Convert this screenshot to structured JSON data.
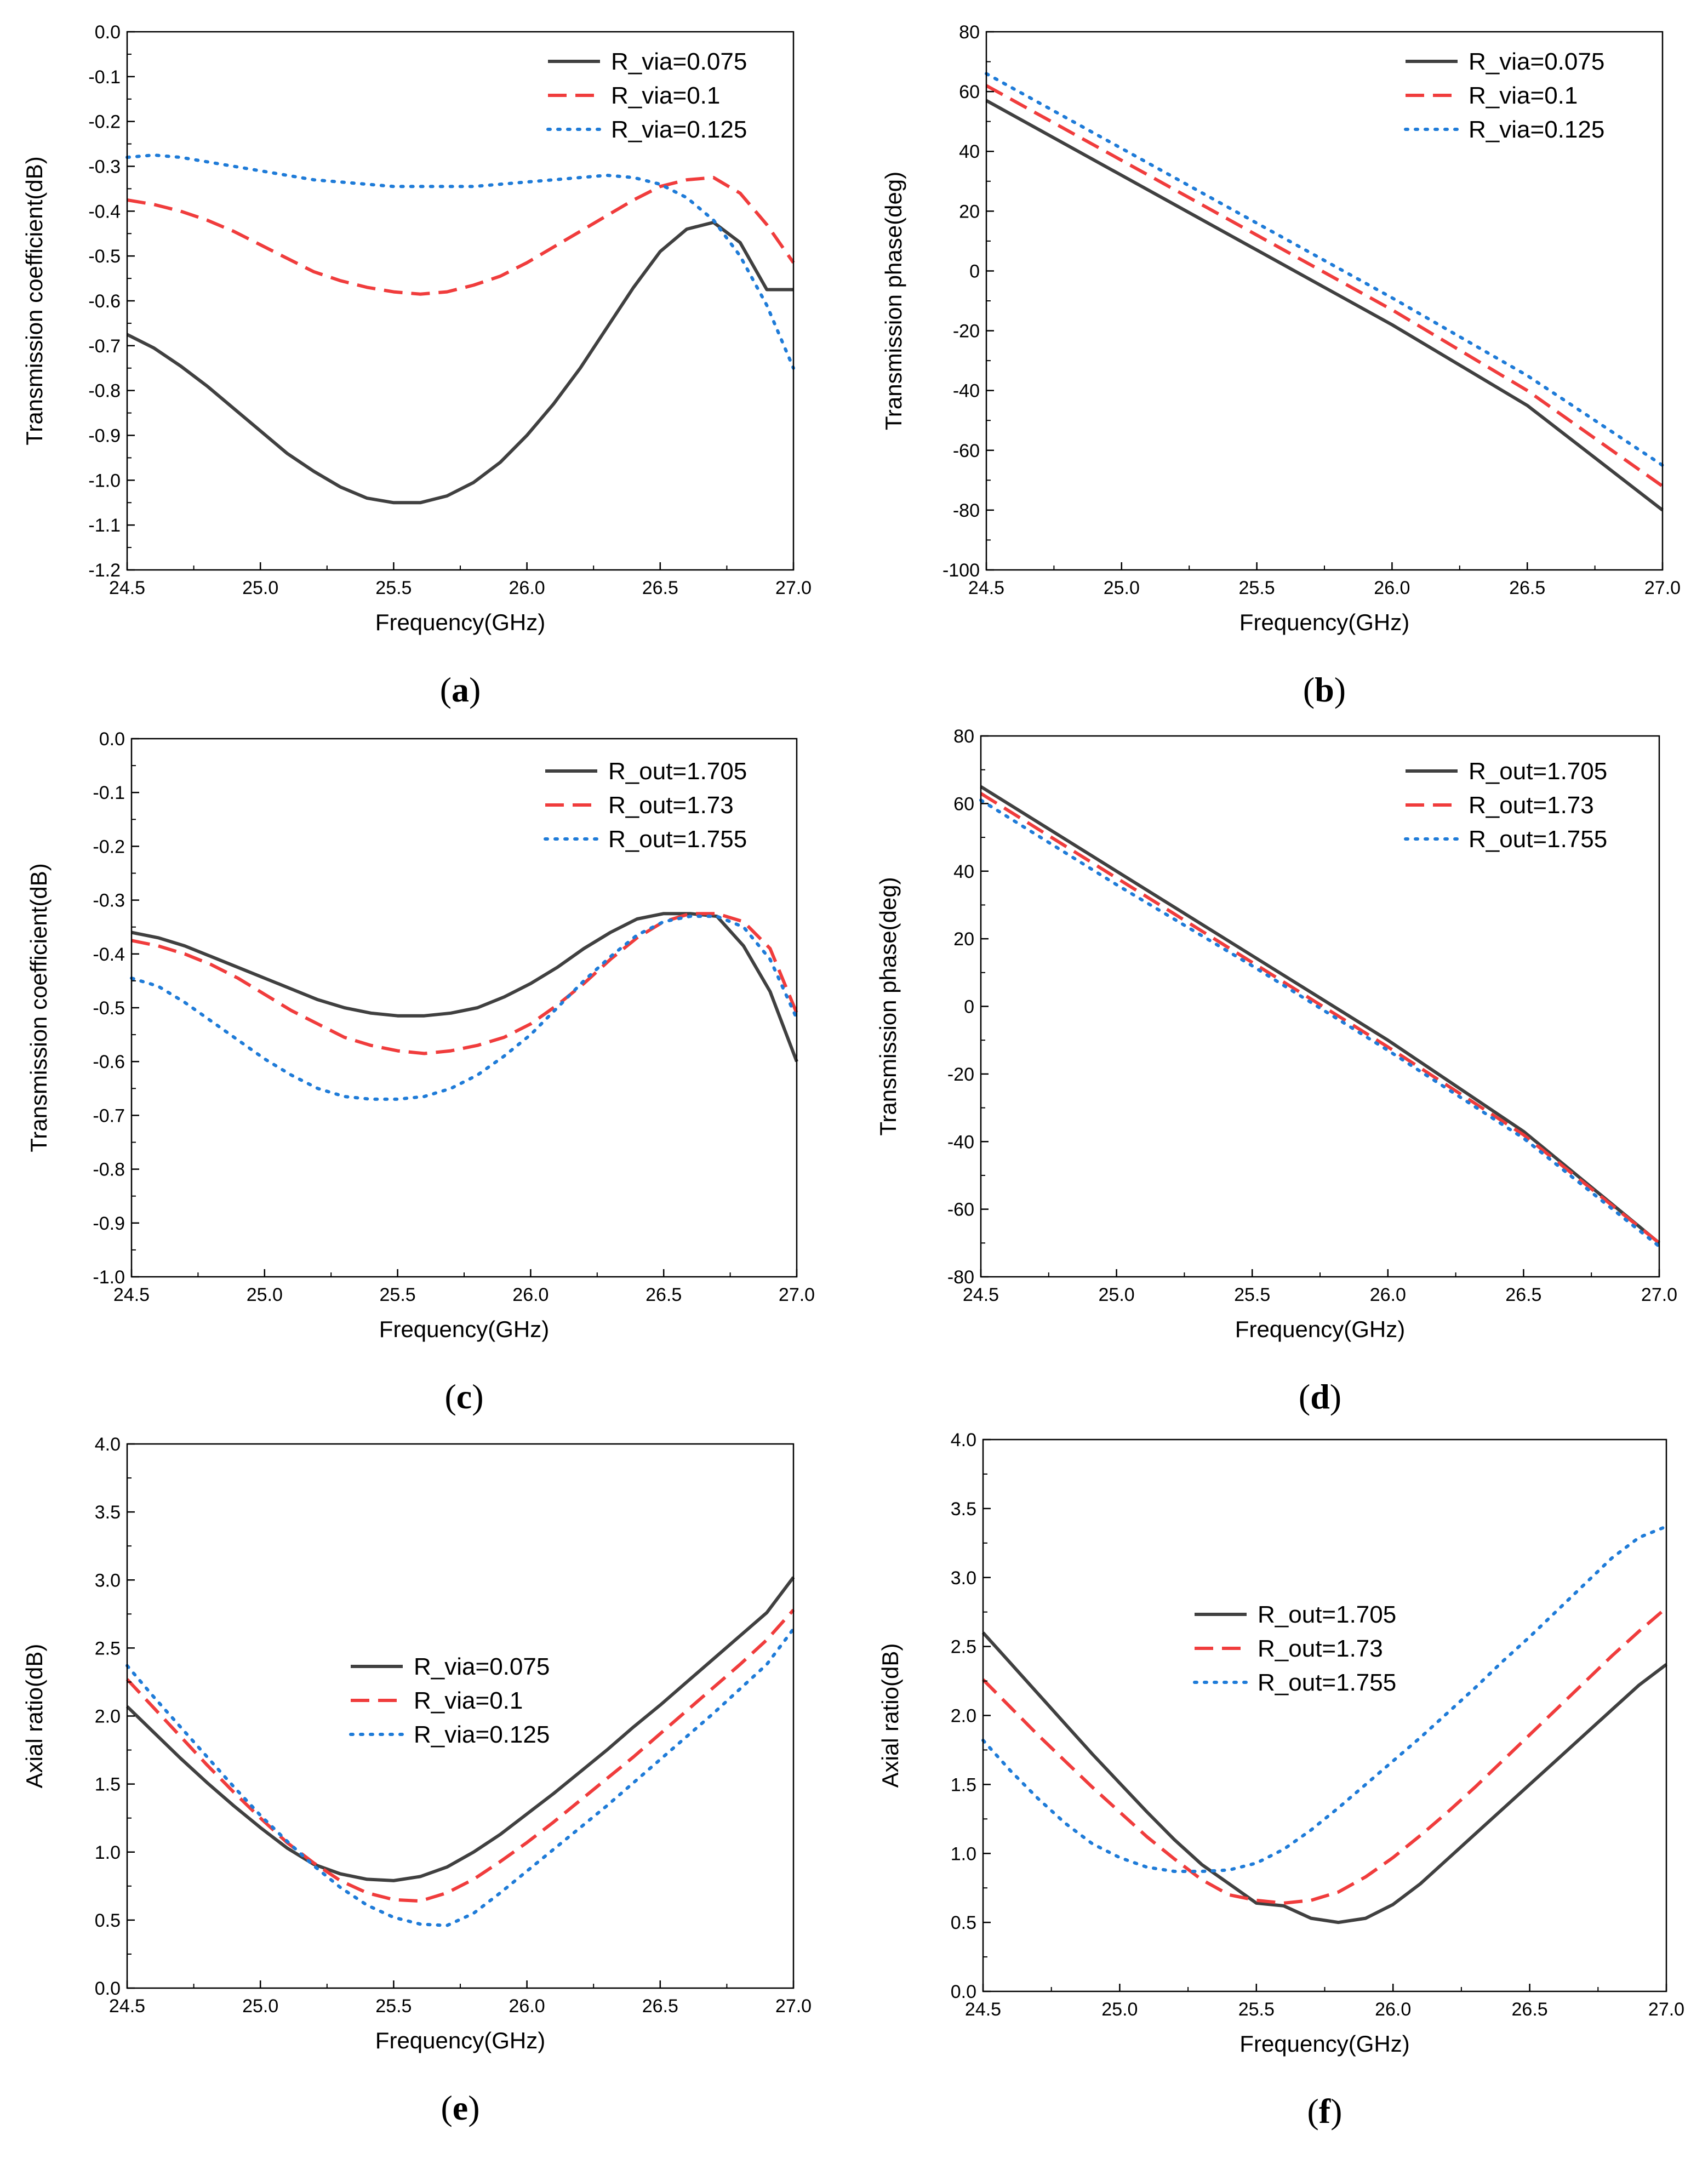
{
  "chart_data": [
    {
      "id": "a",
      "caption": "a",
      "type": "line",
      "xlabel": "Frequency(GHz)",
      "ylabel": "Transmission coefficient(dB)",
      "xlim": [
        24.5,
        27.0
      ],
      "ylim": [
        -1.2,
        0.0
      ],
      "xticks": [
        "24.5",
        "25.0",
        "25.5",
        "26.0",
        "26.5",
        "27.0"
      ],
      "yticks": [
        "0.0",
        "-0.1",
        "-0.2",
        "-0.3",
        "-0.4",
        "-0.5",
        "-0.6",
        "-0.7",
        "-0.8",
        "-0.9",
        "-1.0",
        "-1.1",
        "-1.2"
      ],
      "legend_position": "top-right",
      "series": [
        {
          "name": "R_via=0.075",
          "style": "solid",
          "color": "#404040",
          "x": [
            24.5,
            24.6,
            24.7,
            24.8,
            24.9,
            25.0,
            25.1,
            25.2,
            25.3,
            25.4,
            25.5,
            25.6,
            25.7,
            25.8,
            25.9,
            26.0,
            26.1,
            26.2,
            26.3,
            26.4,
            26.5,
            26.6,
            26.7,
            26.8,
            26.9,
            27.0
          ],
          "values": [
            -0.675,
            -0.705,
            -0.745,
            -0.79,
            -0.84,
            -0.89,
            -0.94,
            -0.98,
            -1.015,
            -1.04,
            -1.05,
            -1.05,
            -1.035,
            -1.005,
            -0.96,
            -0.9,
            -0.83,
            -0.75,
            -0.66,
            -0.57,
            -0.49,
            -0.44,
            -0.425,
            -0.47,
            -0.575,
            -0.575
          ]
        },
        {
          "name": "R_via=0.1",
          "style": "dashed",
          "color": "#f03c3c",
          "x": [
            24.5,
            24.6,
            24.7,
            24.8,
            24.9,
            25.0,
            25.1,
            25.2,
            25.3,
            25.4,
            25.5,
            25.6,
            25.7,
            25.8,
            25.9,
            26.0,
            26.1,
            26.2,
            26.3,
            26.4,
            26.5,
            26.6,
            26.7,
            26.8,
            26.9,
            27.0
          ],
          "values": [
            -0.375,
            -0.385,
            -0.4,
            -0.42,
            -0.445,
            -0.475,
            -0.505,
            -0.535,
            -0.555,
            -0.57,
            -0.58,
            -0.585,
            -0.58,
            -0.565,
            -0.545,
            -0.515,
            -0.48,
            -0.445,
            -0.41,
            -0.375,
            -0.345,
            -0.33,
            -0.325,
            -0.36,
            -0.43,
            -0.515
          ]
        },
        {
          "name": "R_via=0.125",
          "style": "dotted",
          "color": "#1e7bd8",
          "x": [
            24.5,
            24.6,
            24.7,
            24.8,
            24.9,
            25.0,
            25.1,
            25.2,
            25.3,
            25.4,
            25.5,
            25.6,
            25.7,
            25.8,
            25.9,
            26.0,
            26.1,
            26.2,
            26.3,
            26.4,
            26.5,
            26.6,
            26.7,
            26.8,
            26.9,
            27.0
          ],
          "values": [
            -0.28,
            -0.275,
            -0.28,
            -0.29,
            -0.3,
            -0.31,
            -0.32,
            -0.33,
            -0.335,
            -0.34,
            -0.345,
            -0.345,
            -0.345,
            -0.345,
            -0.34,
            -0.335,
            -0.33,
            -0.325,
            -0.32,
            -0.325,
            -0.34,
            -0.37,
            -0.42,
            -0.5,
            -0.61,
            -0.75
          ]
        }
      ]
    },
    {
      "id": "b",
      "caption": "b",
      "type": "line",
      "xlabel": "Frequency(GHz)",
      "ylabel": "Transmission phase(deg)",
      "xlim": [
        24.5,
        27.0
      ],
      "ylim": [
        -100,
        80
      ],
      "xticks": [
        "24.5",
        "25.0",
        "25.5",
        "26.0",
        "26.5",
        "27.0"
      ],
      "yticks": [
        "80",
        "60",
        "40",
        "20",
        "0",
        "-20",
        "-40",
        "-60",
        "-80",
        "-100"
      ],
      "legend_position": "top-right",
      "series": [
        {
          "name": "R_via=0.075",
          "style": "solid",
          "color": "#404040",
          "x": [
            24.5,
            25.0,
            25.5,
            26.0,
            26.5,
            27.0
          ],
          "values": [
            57,
            32,
            7,
            -18,
            -45,
            -80
          ]
        },
        {
          "name": "R_via=0.1",
          "style": "dashed",
          "color": "#f03c3c",
          "x": [
            24.5,
            25.0,
            25.5,
            26.0,
            26.5,
            27.0
          ],
          "values": [
            62,
            37,
            12,
            -13,
            -40,
            -72
          ]
        },
        {
          "name": "R_via=0.125",
          "style": "dotted",
          "color": "#1e7bd8",
          "x": [
            24.5,
            25.0,
            25.5,
            26.0,
            26.5,
            27.0
          ],
          "values": [
            66,
            41,
            16,
            -9,
            -35,
            -65
          ]
        }
      ]
    },
    {
      "id": "c",
      "caption": "c",
      "type": "line",
      "xlabel": "Frequency(GHz)",
      "ylabel": "Transmission coefficient(dB)",
      "xlim": [
        24.5,
        27.0
      ],
      "ylim": [
        -1.0,
        0.0
      ],
      "xticks": [
        "24.5",
        "25.0",
        "25.5",
        "26.0",
        "26.5",
        "27.0"
      ],
      "yticks": [
        "0.0",
        "-0.1",
        "-0.2",
        "-0.3",
        "-0.4",
        "-0.5",
        "-0.6",
        "-0.7",
        "-0.8",
        "-0.9",
        "-1.0"
      ],
      "legend_position": "top-right",
      "series": [
        {
          "name": "R_out=1.705",
          "style": "solid",
          "color": "#404040",
          "x": [
            24.5,
            24.6,
            24.7,
            24.8,
            24.9,
            25.0,
            25.1,
            25.2,
            25.3,
            25.4,
            25.5,
            25.6,
            25.7,
            25.8,
            25.9,
            26.0,
            26.1,
            26.2,
            26.3,
            26.4,
            26.5,
            26.6,
            26.7,
            26.8,
            26.9,
            27.0
          ],
          "values": [
            -0.36,
            -0.37,
            -0.385,
            -0.405,
            -0.425,
            -0.445,
            -0.465,
            -0.485,
            -0.5,
            -0.51,
            -0.515,
            -0.515,
            -0.51,
            -0.5,
            -0.48,
            -0.455,
            -0.425,
            -0.39,
            -0.36,
            -0.335,
            -0.325,
            -0.325,
            -0.33,
            -0.385,
            -0.47,
            -0.6
          ]
        },
        {
          "name": "R_out=1.73",
          "style": "dashed",
          "color": "#f03c3c",
          "x": [
            24.5,
            24.6,
            24.7,
            24.8,
            24.9,
            25.0,
            25.1,
            25.2,
            25.3,
            25.4,
            25.5,
            25.6,
            25.7,
            25.8,
            25.9,
            26.0,
            26.1,
            26.2,
            26.3,
            26.4,
            26.5,
            26.6,
            26.7,
            26.8,
            26.9,
            27.0
          ],
          "values": [
            -0.375,
            -0.385,
            -0.4,
            -0.42,
            -0.445,
            -0.475,
            -0.505,
            -0.53,
            -0.555,
            -0.57,
            -0.58,
            -0.585,
            -0.58,
            -0.57,
            -0.555,
            -0.53,
            -0.495,
            -0.455,
            -0.41,
            -0.37,
            -0.34,
            -0.325,
            -0.325,
            -0.34,
            -0.39,
            -0.51
          ]
        },
        {
          "name": "R_out=1.755",
          "style": "dotted",
          "color": "#1e7bd8",
          "x": [
            24.5,
            24.6,
            24.7,
            24.8,
            24.9,
            25.0,
            25.1,
            25.2,
            25.3,
            25.4,
            25.5,
            25.6,
            25.7,
            25.8,
            25.9,
            26.0,
            26.1,
            26.2,
            26.3,
            26.4,
            26.5,
            26.6,
            26.7,
            26.8,
            26.9,
            27.0
          ],
          "values": [
            -0.445,
            -0.46,
            -0.49,
            -0.525,
            -0.56,
            -0.595,
            -0.625,
            -0.65,
            -0.665,
            -0.67,
            -0.67,
            -0.665,
            -0.65,
            -0.625,
            -0.59,
            -0.55,
            -0.5,
            -0.45,
            -0.405,
            -0.365,
            -0.34,
            -0.33,
            -0.33,
            -0.35,
            -0.41,
            -0.52
          ]
        }
      ]
    },
    {
      "id": "d",
      "caption": "d",
      "type": "line",
      "xlabel": "Frequency(GHz)",
      "ylabel": "Transmission phase(deg)",
      "xlim": [
        24.5,
        27.0
      ],
      "ylim": [
        -80,
        80
      ],
      "xticks": [
        "24.5",
        "25.0",
        "25.5",
        "26.0",
        "26.5",
        "27.0"
      ],
      "yticks": [
        "80",
        "60",
        "40",
        "20",
        "0",
        "-20",
        "-40",
        "-60",
        "-80"
      ],
      "legend_position": "top-right",
      "series": [
        {
          "name": "R_out=1.705",
          "style": "solid",
          "color": "#404040",
          "x": [
            24.5,
            25.0,
            25.5,
            26.0,
            26.5,
            27.0
          ],
          "values": [
            65,
            40,
            15,
            -10,
            -37,
            -70
          ]
        },
        {
          "name": "R_out=1.73",
          "style": "dashed",
          "color": "#f03c3c",
          "x": [
            24.5,
            25.0,
            25.5,
            26.0,
            26.5,
            27.0
          ],
          "values": [
            63,
            38,
            13,
            -12,
            -38,
            -70
          ]
        },
        {
          "name": "R_out=1.755",
          "style": "dotted",
          "color": "#1e7bd8",
          "x": [
            24.5,
            25.0,
            25.5,
            26.0,
            26.5,
            27.0
          ],
          "values": [
            61,
            36,
            12,
            -13,
            -39,
            -71
          ]
        }
      ]
    },
    {
      "id": "e",
      "caption": "e",
      "type": "line",
      "xlabel": "Frequency(GHz)",
      "ylabel": "Axial ratio(dB)",
      "xlim": [
        24.5,
        27.0
      ],
      "ylim": [
        0.0,
        4.0
      ],
      "xticks": [
        "24.5",
        "25.0",
        "25.5",
        "26.0",
        "26.5",
        "27.0"
      ],
      "yticks": [
        "4.0",
        "3.5",
        "3.0",
        "2.5",
        "2.0",
        "1.5",
        "1.0",
        "0.5",
        "0.0"
      ],
      "legend_position": "center",
      "series": [
        {
          "name": "R_via=0.075",
          "style": "solid",
          "color": "#404040",
          "x": [
            24.5,
            24.6,
            24.7,
            24.8,
            24.9,
            25.0,
            25.1,
            25.2,
            25.3,
            25.4,
            25.5,
            25.6,
            25.7,
            25.8,
            25.9,
            26.0,
            26.1,
            26.2,
            26.3,
            26.4,
            26.5,
            26.6,
            26.7,
            26.8,
            26.9,
            27.0
          ],
          "values": [
            2.07,
            1.88,
            1.69,
            1.51,
            1.34,
            1.18,
            1.03,
            0.91,
            0.84,
            0.8,
            0.79,
            0.82,
            0.89,
            1.0,
            1.13,
            1.28,
            1.43,
            1.59,
            1.75,
            1.92,
            2.08,
            2.25,
            2.42,
            2.59,
            2.76,
            3.02
          ]
        },
        {
          "name": "R_via=0.1",
          "style": "dashed",
          "color": "#f03c3c",
          "x": [
            24.5,
            24.6,
            24.7,
            24.8,
            24.9,
            25.0,
            25.1,
            25.2,
            25.3,
            25.4,
            25.5,
            25.6,
            25.7,
            25.8,
            25.9,
            26.0,
            26.1,
            26.2,
            26.3,
            26.4,
            26.5,
            26.6,
            26.7,
            26.8,
            26.9,
            27.0
          ],
          "values": [
            2.27,
            2.06,
            1.85,
            1.64,
            1.44,
            1.25,
            1.07,
            0.92,
            0.79,
            0.7,
            0.65,
            0.64,
            0.7,
            0.8,
            0.93,
            1.07,
            1.22,
            1.38,
            1.54,
            1.7,
            1.87,
            2.04,
            2.21,
            2.38,
            2.56,
            2.78
          ]
        },
        {
          "name": "R_via=0.125",
          "style": "dotted",
          "color": "#1e7bd8",
          "x": [
            24.5,
            24.6,
            24.7,
            24.8,
            24.9,
            25.0,
            25.1,
            25.2,
            25.3,
            25.4,
            25.5,
            25.6,
            25.7,
            25.8,
            25.9,
            26.0,
            26.1,
            26.2,
            26.3,
            26.4,
            26.5,
            26.6,
            26.7,
            26.8,
            26.9,
            27.0
          ],
          "values": [
            2.37,
            2.14,
            1.92,
            1.7,
            1.48,
            1.27,
            1.08,
            0.9,
            0.74,
            0.61,
            0.52,
            0.47,
            0.46,
            0.55,
            0.7,
            0.86,
            1.02,
            1.18,
            1.34,
            1.51,
            1.68,
            1.85,
            2.02,
            2.2,
            2.38,
            2.64
          ]
        }
      ]
    },
    {
      "id": "f",
      "caption": "f",
      "type": "line",
      "xlabel": "Frequency(GHz)",
      "ylabel": "Axial ratio(dB)",
      "xlim": [
        24.5,
        27.0
      ],
      "ylim": [
        0.0,
        4.0
      ],
      "xticks": [
        "24.5",
        "25.0",
        "25.5",
        "26.0",
        "26.5",
        "27.0"
      ],
      "yticks": [
        "4.0",
        "3.5",
        "3.0",
        "2.5",
        "2.0",
        "1.5",
        "1.0",
        "0.5",
        "0.0"
      ],
      "legend_position": "center-left",
      "series": [
        {
          "name": "R_out=1.705",
          "style": "solid",
          "color": "#404040",
          "x": [
            24.5,
            24.6,
            24.7,
            24.8,
            24.9,
            25.0,
            25.1,
            25.2,
            25.3,
            25.4,
            25.5,
            25.6,
            25.7,
            25.8,
            25.9,
            26.0,
            26.1,
            26.2,
            26.3,
            26.4,
            26.5,
            26.6,
            26.7,
            26.8,
            26.9,
            27.0
          ],
          "values": [
            2.6,
            2.38,
            2.16,
            1.94,
            1.72,
            1.51,
            1.3,
            1.1,
            0.92,
            0.78,
            0.64,
            0.62,
            0.53,
            0.5,
            0.53,
            0.63,
            0.78,
            0.96,
            1.14,
            1.32,
            1.5,
            1.68,
            1.86,
            2.04,
            2.22,
            2.37
          ]
        },
        {
          "name": "R_out=1.73",
          "style": "dashed",
          "color": "#f03c3c",
          "x": [
            24.5,
            24.6,
            24.7,
            24.8,
            24.9,
            25.0,
            25.1,
            25.2,
            25.3,
            25.4,
            25.5,
            25.6,
            25.7,
            25.8,
            25.9,
            26.0,
            26.1,
            26.2,
            26.3,
            26.4,
            26.5,
            26.6,
            26.7,
            26.8,
            26.9,
            27.0
          ],
          "values": [
            2.26,
            2.06,
            1.86,
            1.67,
            1.48,
            1.3,
            1.12,
            0.96,
            0.81,
            0.7,
            0.66,
            0.64,
            0.66,
            0.72,
            0.83,
            0.97,
            1.13,
            1.3,
            1.48,
            1.67,
            1.86,
            2.05,
            2.24,
            2.43,
            2.61,
            2.78
          ]
        },
        {
          "name": "R_out=1.755",
          "style": "dotted",
          "color": "#1e7bd8",
          "x": [
            24.5,
            24.6,
            24.7,
            24.8,
            24.9,
            25.0,
            25.1,
            25.2,
            25.3,
            25.4,
            25.5,
            25.6,
            25.7,
            25.8,
            25.9,
            26.0,
            26.1,
            26.2,
            26.3,
            26.4,
            26.5,
            26.6,
            26.7,
            26.8,
            26.9,
            27.0
          ],
          "values": [
            1.82,
            1.6,
            1.4,
            1.22,
            1.07,
            0.97,
            0.9,
            0.87,
            0.87,
            0.88,
            0.93,
            1.03,
            1.17,
            1.33,
            1.5,
            1.67,
            1.84,
            2.02,
            2.2,
            2.39,
            2.57,
            2.76,
            2.95,
            3.14,
            3.29,
            3.37
          ]
        }
      ]
    }
  ]
}
